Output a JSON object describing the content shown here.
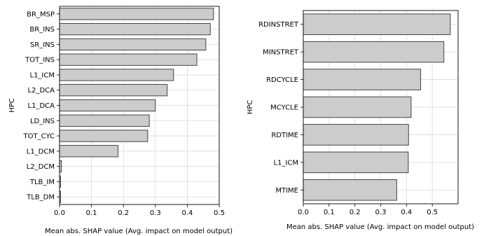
{
  "chart_data": [
    {
      "type": "bar",
      "orientation": "horizontal",
      "categories": [
        "BR_MSP",
        "BR_INS",
        "SR_INS",
        "TOT_INS",
        "L1_ICM",
        "L2_DCA",
        "L1_DCA",
        "LD_INS",
        "TOT_CYC",
        "L1_DCM",
        "L2_DCM",
        "TLB_IM",
        "TLB_DM"
      ],
      "values": [
        0.482,
        0.472,
        0.458,
        0.43,
        0.357,
        0.337,
        0.3,
        0.281,
        0.276,
        0.183,
        0.006,
        0.003,
        0.003
      ],
      "xlabel": "Mean abs. SHAP value (Avg. impact on model output)",
      "ylabel": "HPC",
      "xlim": [
        0,
        0.5
      ],
      "xticks": [
        "0.0",
        "0.1",
        "0.2",
        "0.3",
        "0.4",
        "0.5"
      ],
      "grid": true,
      "bar_color": "#cccccc",
      "edge_color": "#333333"
    },
    {
      "type": "bar",
      "orientation": "horizontal",
      "categories": [
        "RDINSTRET",
        "MINSTRET",
        "RDCYCLE",
        "MCYCLE",
        "RDTIME",
        "L1_ICM",
        "MTIME"
      ],
      "values": [
        0.57,
        0.545,
        0.455,
        0.418,
        0.408,
        0.407,
        0.362
      ],
      "xlabel": "Mean abs. SHAP value (Avg. impact on model output)",
      "ylabel": "HPC",
      "xlim": [
        0,
        0.6
      ],
      "xticks": [
        "0.0",
        "0.1",
        "0.2",
        "0.3",
        "0.4",
        "0.5"
      ],
      "grid": true,
      "bar_color": "#cccccc",
      "edge_color": "#333333"
    }
  ]
}
